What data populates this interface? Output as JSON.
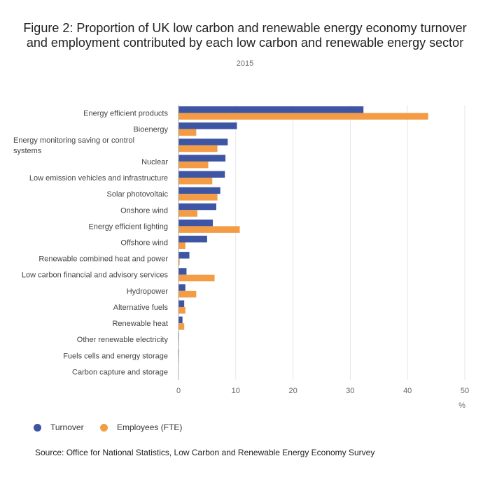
{
  "title": "Figure 2: Proportion of UK low carbon and renewable energy economy turnover and employment contributed by each low carbon and renewable energy sector",
  "subtitle": "2015",
  "source": "Source: Office for National Statistics, Low Carbon and Renewable Energy Economy Survey",
  "colors": {
    "turnover": "#3d55a3",
    "employees": "#f39c45",
    "grid": "#e6e6e6",
    "axis": "#aaaaaa"
  },
  "chart_data": {
    "type": "bar",
    "orientation": "horizontal",
    "categories": [
      "Energy efficient products",
      "Bioenergy",
      "Energy monitoring saving or control systems",
      "Nuclear",
      "Low emission vehicles and infrastructure",
      "Solar photovoltaic",
      "Onshore wind",
      "Energy efficient lighting",
      "Offshore wind",
      "Renewable combined heat and power",
      "Low carbon financial and advisory services",
      "Hydropower",
      "Alternative fuels",
      "Renewable heat",
      "Other renewable electricity",
      "Fuels cells and energy storage",
      "Carbon capture and storage"
    ],
    "series": [
      {
        "name": "Turnover",
        "values": [
          32.3,
          10.2,
          8.6,
          8.2,
          8.1,
          7.3,
          6.6,
          6.0,
          5.0,
          1.9,
          1.4,
          1.2,
          1.0,
          0.7,
          0.1,
          0.1,
          0.0
        ]
      },
      {
        "name": "Employees (FTE)",
        "values": [
          43.6,
          3.1,
          6.8,
          5.2,
          5.9,
          6.8,
          3.3,
          10.7,
          1.2,
          0.2,
          6.3,
          3.1,
          1.2,
          1.0,
          0.1,
          0.1,
          0.0
        ]
      }
    ],
    "xlim": [
      0,
      50
    ],
    "xticks": [
      0,
      10,
      20,
      30,
      40,
      50
    ],
    "xlabel": "%",
    "ylabel": "",
    "grid": true,
    "legend": "bottom-left"
  }
}
